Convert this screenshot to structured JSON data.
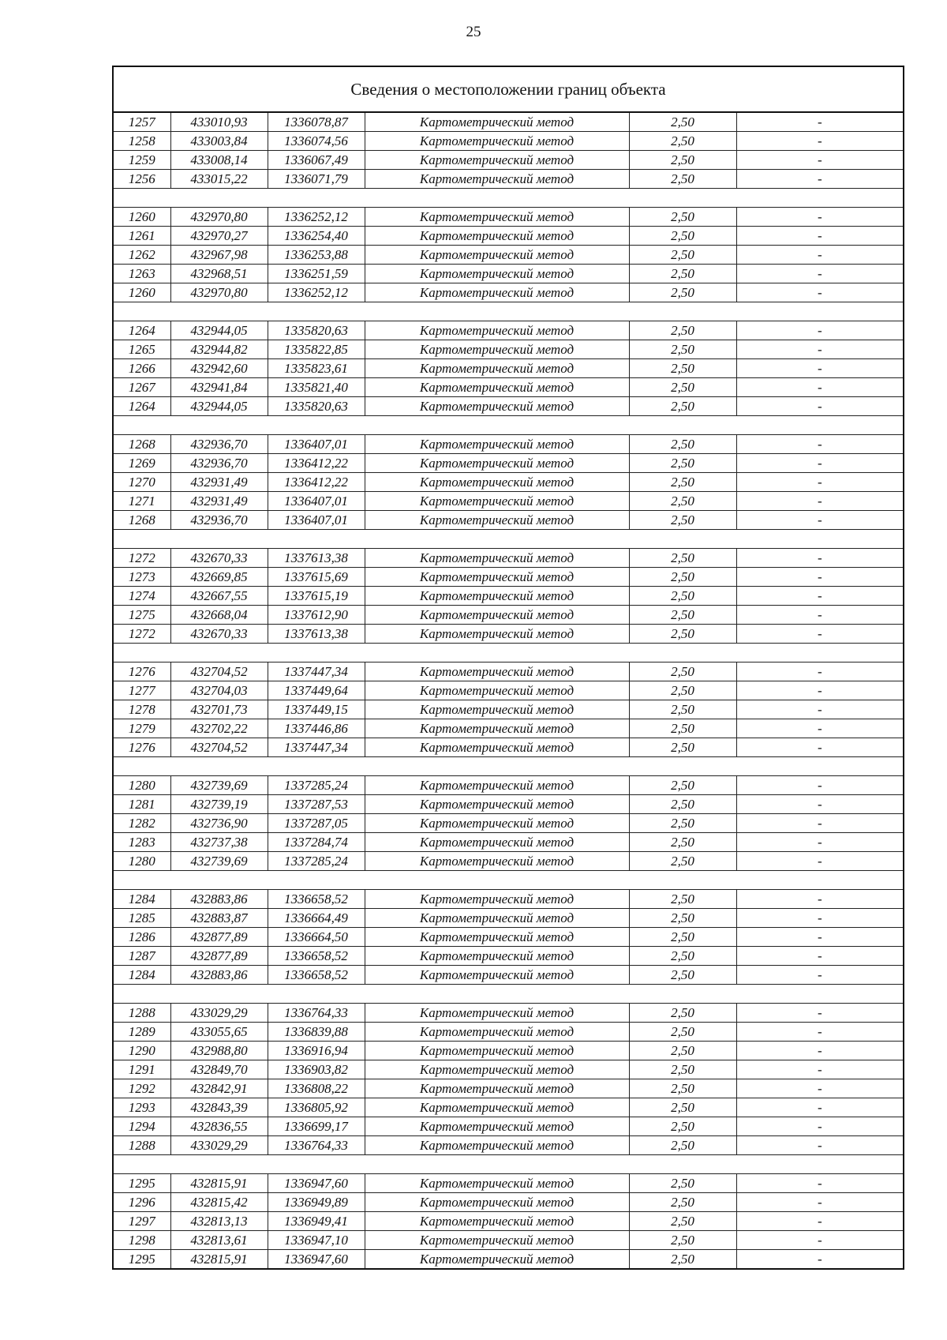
{
  "page_number": "25",
  "table": {
    "title": "Сведения о местоположении границ объекта",
    "groups": [
      {
        "rows": [
          [
            "1257",
            "433010,93",
            "1336078,87",
            "Картометрический метод",
            "2,50",
            "-"
          ],
          [
            "1258",
            "433003,84",
            "1336074,56",
            "Картометрический метод",
            "2,50",
            "-"
          ],
          [
            "1259",
            "433008,14",
            "1336067,49",
            "Картометрический метод",
            "2,50",
            "-"
          ],
          [
            "1256",
            "433015,22",
            "1336071,79",
            "Картометрический метод",
            "2,50",
            "-"
          ]
        ]
      },
      {
        "rows": [
          [
            "1260",
            "432970,80",
            "1336252,12",
            "Картометрический метод",
            "2,50",
            "-"
          ],
          [
            "1261",
            "432970,27",
            "1336254,40",
            "Картометрический метод",
            "2,50",
            "-"
          ],
          [
            "1262",
            "432967,98",
            "1336253,88",
            "Картометрический метод",
            "2,50",
            "-"
          ],
          [
            "1263",
            "432968,51",
            "1336251,59",
            "Картометрический метод",
            "2,50",
            "-"
          ],
          [
            "1260",
            "432970,80",
            "1336252,12",
            "Картометрический метод",
            "2,50",
            "-"
          ]
        ]
      },
      {
        "rows": [
          [
            "1264",
            "432944,05",
            "1335820,63",
            "Картометрический метод",
            "2,50",
            "-"
          ],
          [
            "1265",
            "432944,82",
            "1335822,85",
            "Картометрический метод",
            "2,50",
            "-"
          ],
          [
            "1266",
            "432942,60",
            "1335823,61",
            "Картометрический метод",
            "2,50",
            "-"
          ],
          [
            "1267",
            "432941,84",
            "1335821,40",
            "Картометрический метод",
            "2,50",
            "-"
          ],
          [
            "1264",
            "432944,05",
            "1335820,63",
            "Картометрический метод",
            "2,50",
            "-"
          ]
        ]
      },
      {
        "rows": [
          [
            "1268",
            "432936,70",
            "1336407,01",
            "Картометрический метод",
            "2,50",
            "-"
          ],
          [
            "1269",
            "432936,70",
            "1336412,22",
            "Картометрический метод",
            "2,50",
            "-"
          ],
          [
            "1270",
            "432931,49",
            "1336412,22",
            "Картометрический метод",
            "2,50",
            "-"
          ],
          [
            "1271",
            "432931,49",
            "1336407,01",
            "Картометрический метод",
            "2,50",
            "-"
          ],
          [
            "1268",
            "432936,70",
            "1336407,01",
            "Картометрический метод",
            "2,50",
            "-"
          ]
        ]
      },
      {
        "rows": [
          [
            "1272",
            "432670,33",
            "1337613,38",
            "Картометрический метод",
            "2,50",
            "-"
          ],
          [
            "1273",
            "432669,85",
            "1337615,69",
            "Картометрический метод",
            "2,50",
            "-"
          ],
          [
            "1274",
            "432667,55",
            "1337615,19",
            "Картометрический метод",
            "2,50",
            "-"
          ],
          [
            "1275",
            "432668,04",
            "1337612,90",
            "Картометрический метод",
            "2,50",
            "-"
          ],
          [
            "1272",
            "432670,33",
            "1337613,38",
            "Картометрический метод",
            "2,50",
            "-"
          ]
        ]
      },
      {
        "rows": [
          [
            "1276",
            "432704,52",
            "1337447,34",
            "Картометрический метод",
            "2,50",
            "-"
          ],
          [
            "1277",
            "432704,03",
            "1337449,64",
            "Картометрический метод",
            "2,50",
            "-"
          ],
          [
            "1278",
            "432701,73",
            "1337449,15",
            "Картометрический метод",
            "2,50",
            "-"
          ],
          [
            "1279",
            "432702,22",
            "1337446,86",
            "Картометрический метод",
            "2,50",
            "-"
          ],
          [
            "1276",
            "432704,52",
            "1337447,34",
            "Картометрический метод",
            "2,50",
            "-"
          ]
        ]
      },
      {
        "rows": [
          [
            "1280",
            "432739,69",
            "1337285,24",
            "Картометрический метод",
            "2,50",
            "-"
          ],
          [
            "1281",
            "432739,19",
            "1337287,53",
            "Картометрический метод",
            "2,50",
            "-"
          ],
          [
            "1282",
            "432736,90",
            "1337287,05",
            "Картометрический метод",
            "2,50",
            "-"
          ],
          [
            "1283",
            "432737,38",
            "1337284,74",
            "Картометрический метод",
            "2,50",
            "-"
          ],
          [
            "1280",
            "432739,69",
            "1337285,24",
            "Картометрический метод",
            "2,50",
            "-"
          ]
        ]
      },
      {
        "rows": [
          [
            "1284",
            "432883,86",
            "1336658,52",
            "Картометрический метод",
            "2,50",
            "-"
          ],
          [
            "1285",
            "432883,87",
            "1336664,49",
            "Картометрический метод",
            "2,50",
            "-"
          ],
          [
            "1286",
            "432877,89",
            "1336664,50",
            "Картометрический метод",
            "2,50",
            "-"
          ],
          [
            "1287",
            "432877,89",
            "1336658,52",
            "Картометрический метод",
            "2,50",
            "-"
          ],
          [
            "1284",
            "432883,86",
            "1336658,52",
            "Картометрический метод",
            "2,50",
            "-"
          ]
        ]
      },
      {
        "rows": [
          [
            "1288",
            "433029,29",
            "1336764,33",
            "Картометрический метод",
            "2,50",
            "-"
          ],
          [
            "1289",
            "433055,65",
            "1336839,88",
            "Картометрический метод",
            "2,50",
            "-"
          ],
          [
            "1290",
            "432988,80",
            "1336916,94",
            "Картометрический метод",
            "2,50",
            "-"
          ],
          [
            "1291",
            "432849,70",
            "1336903,82",
            "Картометрический метод",
            "2,50",
            "-"
          ],
          [
            "1292",
            "432842,91",
            "1336808,22",
            "Картометрический метод",
            "2,50",
            "-"
          ],
          [
            "1293",
            "432843,39",
            "1336805,92",
            "Картометрический метод",
            "2,50",
            "-"
          ],
          [
            "1294",
            "432836,55",
            "1336699,17",
            "Картометрический метод",
            "2,50",
            "-"
          ],
          [
            "1288",
            "433029,29",
            "1336764,33",
            "Картометрический метод",
            "2,50",
            "-"
          ]
        ]
      },
      {
        "rows": [
          [
            "1295",
            "432815,91",
            "1336947,60",
            "Картометрический метод",
            "2,50",
            "-"
          ],
          [
            "1296",
            "432815,42",
            "1336949,89",
            "Картометрический метод",
            "2,50",
            "-"
          ],
          [
            "1297",
            "432813,13",
            "1336949,41",
            "Картометрический метод",
            "2,50",
            "-"
          ],
          [
            "1298",
            "432813,61",
            "1336947,10",
            "Картометрический метод",
            "2,50",
            "-"
          ],
          [
            "1295",
            "432815,91",
            "1336947,60",
            "Картометрический метод",
            "2,50",
            "-"
          ]
        ]
      }
    ]
  }
}
